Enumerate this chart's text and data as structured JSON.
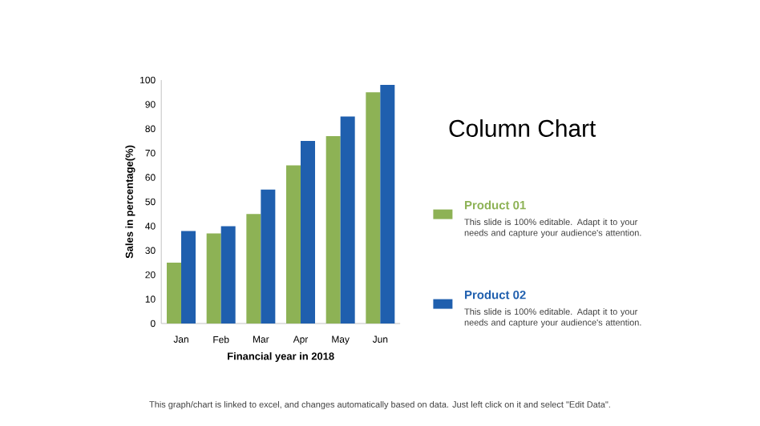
{
  "chart_data": {
    "type": "bar",
    "title": "Column Chart",
    "xlabel": "Financial year in 2018",
    "ylabel": "Sales in percentage(%)",
    "categories": [
      "Jan",
      "Feb",
      "Mar",
      "Apr",
      "May",
      "Jun"
    ],
    "series": [
      {
        "name": "Product 01",
        "color": "#8db255",
        "values": [
          25,
          37,
          45,
          65,
          77,
          95
        ]
      },
      {
        "name": "Product 02",
        "color": "#1f5fae",
        "values": [
          38,
          40,
          55,
          75,
          85,
          98
        ]
      }
    ],
    "ylim": [
      0,
      100
    ],
    "yticks": [
      0,
      10,
      20,
      30,
      40,
      50,
      60,
      70,
      80,
      90,
      100
    ],
    "legend": "right",
    "annotations": [
      "This slide is 100% editable. Adapt it to your needs and capture your audience's attention.",
      "This slide is 100% editable. Adapt it to your needs and capture your audience's attention.",
      "This graph/chart is linked to excel, and changes automatically based on data. Just left click on it and select \"Edit Data\"."
    ]
  }
}
